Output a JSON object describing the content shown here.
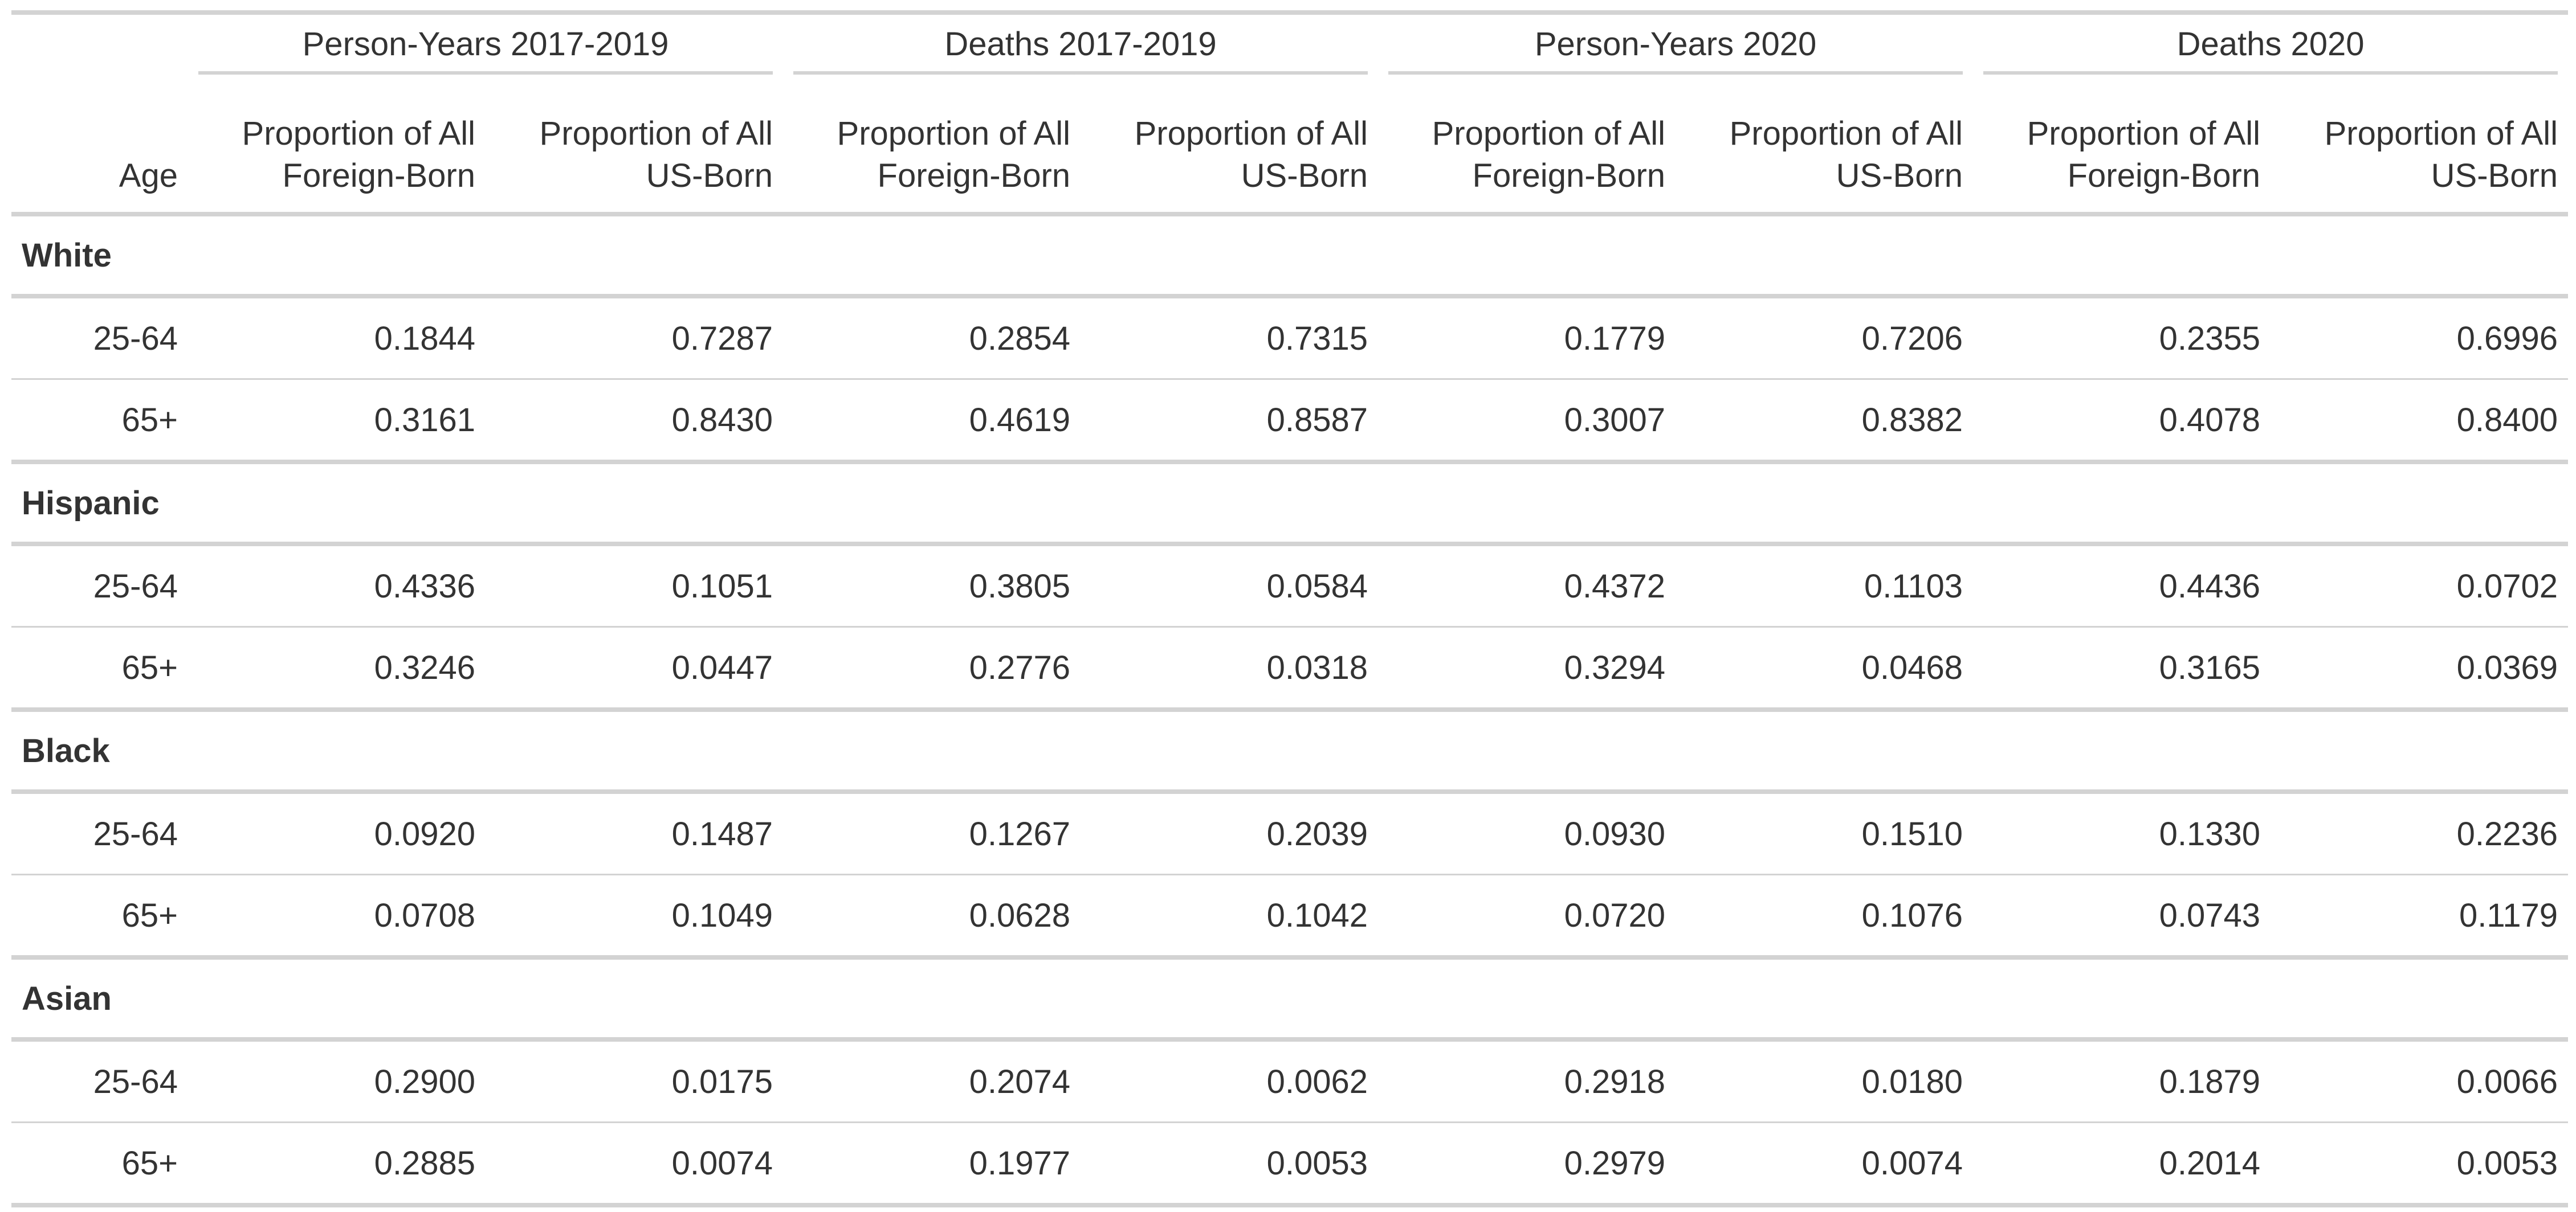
{
  "chart_data": {
    "type": "table",
    "stub_header": "Age",
    "spanners": [
      "Person-Years 2017-2019",
      "Deaths 2017-2019",
      "Person-Years 2020",
      "Deaths 2020"
    ],
    "column_labels": [
      [
        "Proportion of All",
        "Foreign-Born"
      ],
      [
        "Proportion of All",
        "US-Born"
      ],
      [
        "Proportion of All",
        "Foreign-Born"
      ],
      [
        "Proportion of All",
        "US-Born"
      ],
      [
        "Proportion of All",
        "Foreign-Born"
      ],
      [
        "Proportion of All",
        "US-Born"
      ],
      [
        "Proportion of All",
        "Foreign-Born"
      ],
      [
        "Proportion of All",
        "US-Born"
      ]
    ],
    "groups": [
      {
        "name": "White",
        "rows": [
          {
            "age": "25-64",
            "values": [
              "0.1844",
              "0.7287",
              "0.2854",
              "0.7315",
              "0.1779",
              "0.7206",
              "0.2355",
              "0.6996"
            ]
          },
          {
            "age": "65+",
            "values": [
              "0.3161",
              "0.8430",
              "0.4619",
              "0.8587",
              "0.3007",
              "0.8382",
              "0.4078",
              "0.8400"
            ]
          }
        ]
      },
      {
        "name": "Hispanic",
        "rows": [
          {
            "age": "25-64",
            "values": [
              "0.4336",
              "0.1051",
              "0.3805",
              "0.0584",
              "0.4372",
              "0.1103",
              "0.4436",
              "0.0702"
            ]
          },
          {
            "age": "65+",
            "values": [
              "0.3246",
              "0.0447",
              "0.2776",
              "0.0318",
              "0.3294",
              "0.0468",
              "0.3165",
              "0.0369"
            ]
          }
        ]
      },
      {
        "name": "Black",
        "rows": [
          {
            "age": "25-64",
            "values": [
              "0.0920",
              "0.1487",
              "0.1267",
              "0.2039",
              "0.0930",
              "0.1510",
              "0.1330",
              "0.2236"
            ]
          },
          {
            "age": "65+",
            "values": [
              "0.0708",
              "0.1049",
              "0.0628",
              "0.1042",
              "0.0720",
              "0.1076",
              "0.0743",
              "0.1179"
            ]
          }
        ]
      },
      {
        "name": "Asian",
        "rows": [
          {
            "age": "25-64",
            "values": [
              "0.2900",
              "0.0175",
              "0.2074",
              "0.0062",
              "0.2918",
              "0.0180",
              "0.1879",
              "0.0066"
            ]
          },
          {
            "age": "65+",
            "values": [
              "0.2885",
              "0.0074",
              "0.1977",
              "0.0053",
              "0.2979",
              "0.0074",
              "0.2014",
              "0.0053"
            ]
          }
        ]
      }
    ],
    "colors": {
      "text": "#333333",
      "rule": "#d3d3d3",
      "background": "#ffffff"
    }
  }
}
